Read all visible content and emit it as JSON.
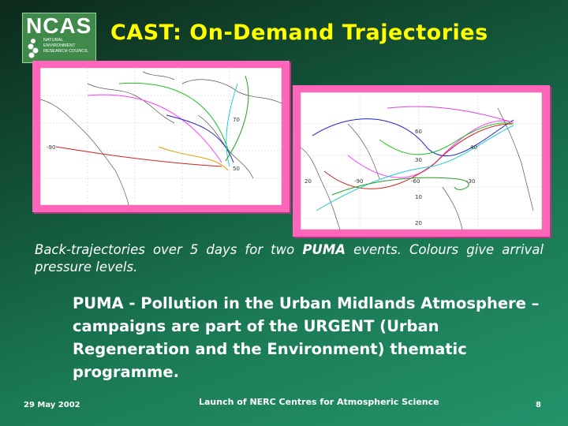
{
  "logo": {
    "main": "NCAS",
    "line1": "NATURAL",
    "line2": "ENVIRONMENT",
    "line3": "RESEARCH COUNCIL"
  },
  "slide": {
    "title": "CAST: On-Demand Trajectories",
    "caption_before": "Back-trajectories over 5 days for two ",
    "caption_bold": "PUMA",
    "caption_after": " events. Colours give arrival pressure levels.",
    "description": "PUMA - Pollution in the Urban Midlands Atmosphere – campaigns are part of the URGENT (Urban Regeneration and the Environment) thematic programme."
  },
  "maps": {
    "left_labels": [
      "-90",
      "70",
      "50"
    ],
    "right_labels": [
      "60",
      "20",
      "-90",
      "-60",
      "-30",
      "30",
      "40",
      "10",
      "20"
    ]
  },
  "footer": {
    "date": "29 May 2002",
    "event": "Launch of NERC Centres for Atmospheric Science",
    "page": "8"
  },
  "colors": {
    "title": "#ffff00",
    "frame": "#ff66bb"
  }
}
